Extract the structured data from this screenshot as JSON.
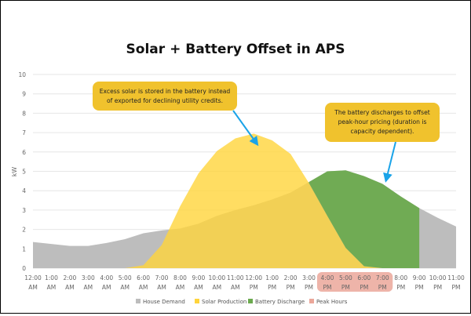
{
  "chart_data": {
    "type": "area",
    "title": "Solar + Battery Offset in APS",
    "ylabel": "kW",
    "ylim": [
      0,
      10
    ],
    "yticks": [
      "0",
      "1",
      "2",
      "3",
      "4",
      "5",
      "6",
      "7",
      "8",
      "9",
      "10"
    ],
    "grid": true,
    "legend_placement": "bottom",
    "categories": [
      [
        "12:00",
        "AM"
      ],
      [
        "1:00",
        "AM"
      ],
      [
        "2:00",
        "AM"
      ],
      [
        "3:00",
        "AM"
      ],
      [
        "4:00",
        "AM"
      ],
      [
        "5:00",
        "AM"
      ],
      [
        "6:00",
        "AM"
      ],
      [
        "7:00",
        "AM"
      ],
      [
        "8:00",
        "AM"
      ],
      [
        "9:00",
        "AM"
      ],
      [
        "10:00",
        "AM"
      ],
      [
        "11:00",
        "AM"
      ],
      [
        "12:00",
        "PM"
      ],
      [
        "1:00",
        "PM"
      ],
      [
        "2:00",
        "PM"
      ],
      [
        "3:00",
        "PM"
      ],
      [
        "4:00",
        "PM"
      ],
      [
        "5:00",
        "PM"
      ],
      [
        "6:00",
        "PM"
      ],
      [
        "7:00",
        "PM"
      ],
      [
        "8:00",
        "PM"
      ],
      [
        "9:00",
        "PM"
      ],
      [
        "10:00",
        "PM"
      ],
      [
        "11:00",
        "PM"
      ]
    ],
    "series": [
      {
        "name": "House Demand",
        "color": "#BDBDBD",
        "values": [
          1.35,
          1.25,
          1.15,
          1.15,
          1.3,
          1.5,
          1.8,
          1.95,
          2.05,
          2.3,
          2.7,
          3.0,
          3.25,
          3.55,
          3.9,
          4.45,
          5.0,
          5.05,
          4.75,
          4.35,
          3.7,
          3.1,
          2.6,
          2.15
        ]
      },
      {
        "name": "Solar Production",
        "color": "#FFD43B",
        "values": [
          0,
          0,
          0,
          0,
          0,
          0,
          0.15,
          1.2,
          3.2,
          4.9,
          6.05,
          6.7,
          6.95,
          6.6,
          5.9,
          4.4,
          2.7,
          1.05,
          0.1,
          0,
          0,
          0,
          0,
          0
        ]
      },
      {
        "name": "Battery Discharge",
        "color": "#6BAA4E",
        "values": [
          null,
          null,
          null,
          null,
          null,
          null,
          null,
          null,
          null,
          null,
          null,
          null,
          null,
          null,
          null,
          0.05,
          2.3,
          4.0,
          4.65,
          4.35,
          3.7,
          3.1,
          null,
          null
        ]
      }
    ],
    "peak_hours": {
      "name": "Peak Hours",
      "color": "#EBA79A",
      "range": [
        "4:00 PM",
        "7:00 PM"
      ]
    },
    "annotations": [
      {
        "lines": [
          "Excess solar is stored in the battery instead",
          "of exported for declining utility credits."
        ],
        "color": "#F0C22D",
        "arrow_color": "#1AA3E8"
      },
      {
        "lines": [
          "The battery discharges to offset",
          "peak-hour pricing (duration is",
          "capacity dependent)."
        ],
        "color": "#F0C22D",
        "arrow_color": "#1AA3E8"
      }
    ]
  }
}
